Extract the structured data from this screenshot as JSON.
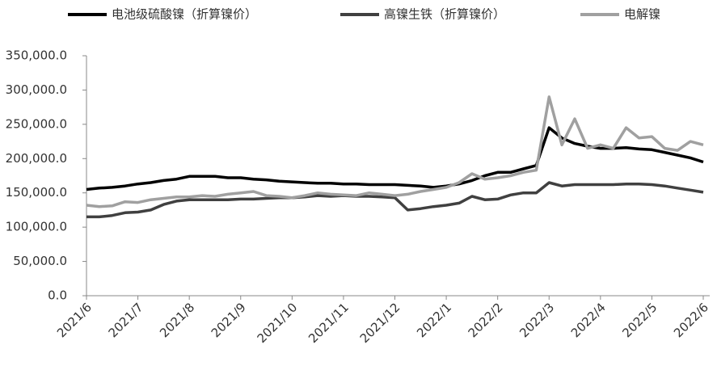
{
  "chart_data": {
    "type": "line",
    "categories": [
      "2021/6",
      null,
      null,
      null,
      "2021/7",
      null,
      null,
      null,
      "2021/8",
      null,
      null,
      null,
      "2021/9",
      null,
      null,
      null,
      "2021/10",
      null,
      null,
      null,
      "2021/11",
      null,
      null,
      null,
      "2021/12",
      null,
      null,
      null,
      "2022/1",
      null,
      null,
      null,
      "2022/2",
      null,
      null,
      null,
      "2022/3",
      null,
      null,
      null,
      "2022/4",
      null,
      null,
      null,
      "2022/5",
      null,
      null,
      null,
      "2022/6"
    ],
    "series": [
      {
        "name": "电池级硫酸镍（折算镍价）",
        "color": "#000000",
        "values": [
          155000,
          157000,
          158000,
          160000,
          163000,
          165000,
          168000,
          170000,
          174000,
          174000,
          174000,
          172000,
          172000,
          170000,
          169000,
          167000,
          166000,
          165000,
          164000,
          164000,
          163000,
          163000,
          162000,
          162000,
          162000,
          161000,
          160000,
          158000,
          160000,
          163000,
          168000,
          175000,
          180000,
          180000,
          185000,
          190000,
          245000,
          230000,
          222000,
          218000,
          215000,
          215000,
          216000,
          214000,
          213000,
          209000,
          205000,
          201000,
          195000
        ]
      },
      {
        "name": "高镍生铁（折算镍价）",
        "color": "#404040",
        "values": [
          115000,
          115000,
          117000,
          121000,
          122000,
          125000,
          133000,
          138000,
          140000,
          140000,
          140000,
          140000,
          141000,
          141000,
          142000,
          143000,
          143000,
          144000,
          146000,
          145000,
          146000,
          145000,
          145000,
          144000,
          143000,
          125000,
          127000,
          130000,
          132000,
          135000,
          145000,
          140000,
          141000,
          147000,
          150000,
          150000,
          165000,
          160000,
          162000,
          162000,
          162000,
          162000,
          163000,
          163000,
          162000,
          160000,
          157000,
          154000,
          151000
        ]
      },
      {
        "name": "电解镍",
        "color": "#a0a0a0",
        "values": [
          132000,
          130000,
          131000,
          137000,
          136000,
          140000,
          142000,
          144000,
          144000,
          146000,
          145000,
          148000,
          150000,
          152000,
          146000,
          145000,
          143000,
          146000,
          150000,
          148000,
          147000,
          146000,
          150000,
          148000,
          146000,
          148000,
          152000,
          155000,
          158000,
          165000,
          178000,
          170000,
          172000,
          175000,
          180000,
          183000,
          290000,
          220000,
          258000,
          215000,
          220000,
          215000,
          245000,
          230000,
          232000,
          215000,
          212000,
          225000,
          220000
        ]
      }
    ],
    "ylim": [
      0,
      350000
    ],
    "yticks": [
      {
        "value": 0,
        "label": "0.0"
      },
      {
        "value": 50000,
        "label": "50,000.0"
      },
      {
        "value": 100000,
        "label": "100,000.0"
      },
      {
        "value": 150000,
        "label": "150,000.0"
      },
      {
        "value": 200000,
        "label": "200,000.0"
      },
      {
        "value": 250000,
        "label": "250,000.0"
      },
      {
        "value": 300000,
        "label": "300,000.0"
      },
      {
        "value": 350000,
        "label": "350,000.0"
      }
    ],
    "grid": false
  }
}
